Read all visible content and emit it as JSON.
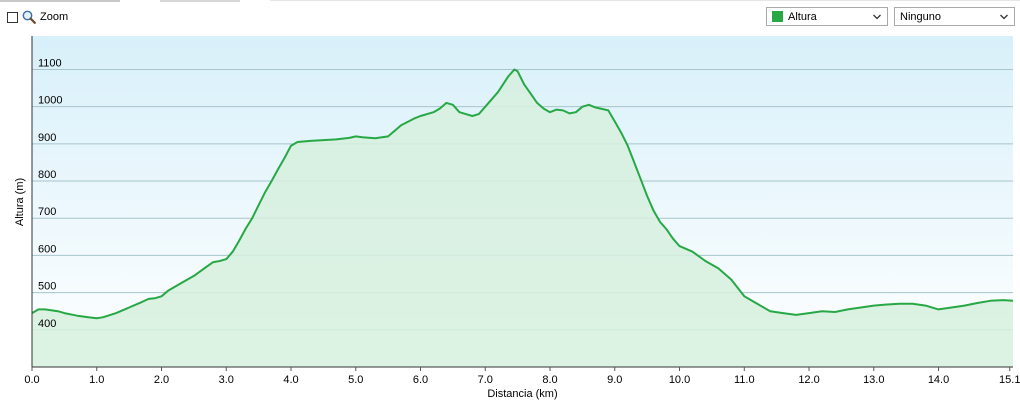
{
  "toolbar": {
    "zoom_label": "Zoom",
    "metric_select": {
      "value": "Altura",
      "swatch_color": "#27a845",
      "icon": "chevron-down-icon"
    },
    "overlay_select": {
      "value": "Ninguno",
      "icon": "chevron-down-icon"
    },
    "zoom_icon": "magnifier-icon",
    "zoom_checkbox_checked": false
  },
  "chart_data": {
    "type": "area",
    "title": "",
    "xlabel": "Distancia  (km)",
    "ylabel": "Altura (m)",
    "xlim": [
      0,
      15.15
    ],
    "ylim": [
      300,
      1190
    ],
    "xticks": [
      "0.0",
      "1.0",
      "2.0",
      "3.0",
      "4.0",
      "5.0",
      "6.0",
      "7.0",
      "8.0",
      "9.0",
      "10.0",
      "11.0",
      "12.0",
      "13.0",
      "14.0",
      "15.1"
    ],
    "yticks": [
      "400",
      "500",
      "600",
      "700",
      "800",
      "900",
      "1000",
      "1100"
    ],
    "grid": true,
    "legend": "none",
    "colors": {
      "line": "#27a845",
      "fill": "#d6f0de",
      "bg_top": "#d8f0fa",
      "bg_bottom": "#ffffff",
      "grid": "#a9c4cc"
    },
    "series": [
      {
        "x": [
          0,
          0.1,
          0.2,
          0.4,
          0.5,
          0.7,
          0.9,
          1.0,
          1.1,
          1.3,
          1.5,
          1.7,
          1.8,
          1.9,
          2.0,
          2.1,
          2.3,
          2.5,
          2.7,
          2.8,
          2.9,
          3.0,
          3.1,
          3.2,
          3.3,
          3.4,
          3.5,
          3.6,
          3.7,
          3.8,
          3.9,
          4.0,
          4.1,
          4.3,
          4.5,
          4.7,
          4.9,
          5.0,
          5.1,
          5.3,
          5.5,
          5.7,
          5.9,
          6.0,
          6.2,
          6.3,
          6.4,
          6.5,
          6.6,
          6.7,
          6.8,
          6.9,
          7.0,
          7.2,
          7.35,
          7.45,
          7.5,
          7.6,
          7.7,
          7.8,
          7.9,
          8.0,
          8.1,
          8.2,
          8.3,
          8.4,
          8.5,
          8.6,
          8.7,
          8.9,
          9.0,
          9.1,
          9.2,
          9.3,
          9.4,
          9.5,
          9.6,
          9.7,
          9.8,
          9.9,
          10.0,
          10.2,
          10.4,
          10.6,
          10.8,
          11.0,
          11.2,
          11.4,
          11.6,
          11.8,
          12.0,
          12.2,
          12.4,
          12.6,
          12.8,
          13.0,
          13.2,
          13.4,
          13.6,
          13.8,
          14.0,
          14.2,
          14.4,
          14.6,
          14.8,
          15.0,
          15.15
        ],
        "y": [
          445,
          455,
          455,
          450,
          445,
          438,
          433,
          431,
          434,
          445,
          460,
          475,
          483,
          485,
          490,
          505,
          525,
          545,
          570,
          582,
          585,
          590,
          610,
          640,
          672,
          700,
          735,
          770,
          800,
          832,
          862,
          895,
          905,
          908,
          910,
          912,
          916,
          920,
          918,
          915,
          920,
          950,
          968,
          975,
          985,
          995,
          1010,
          1005,
          985,
          980,
          975,
          980,
          1000,
          1040,
          1080,
          1100,
          1095,
          1060,
          1035,
          1010,
          995,
          985,
          992,
          990,
          982,
          985,
          1000,
          1005,
          998,
          990,
          960,
          930,
          895,
          850,
          805,
          760,
          720,
          690,
          670,
          645,
          625,
          610,
          585,
          565,
          535,
          490,
          470,
          450,
          445,
          440,
          445,
          450,
          448,
          455,
          460,
          465,
          468,
          470,
          470,
          465,
          455,
          460,
          465,
          472,
          478,
          480,
          478
        ]
      }
    ]
  }
}
